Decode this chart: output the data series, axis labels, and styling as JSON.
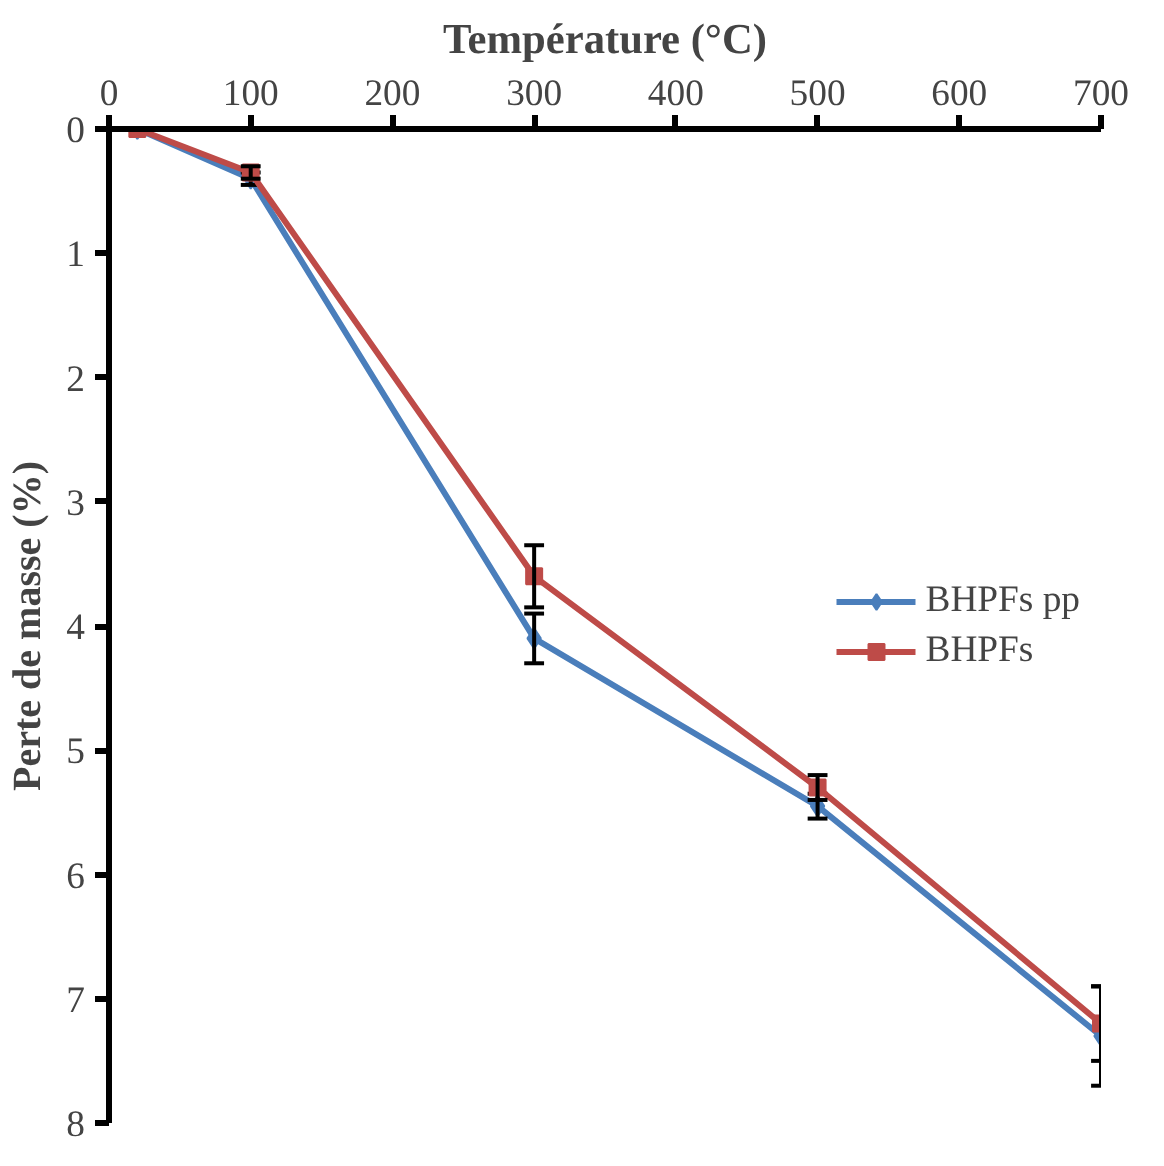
{
  "chart_data": {
    "type": "line",
    "title": "Température (°C)",
    "ylabel": "Perte de masse (%)",
    "x": [
      20,
      100,
      300,
      500,
      700
    ],
    "series": [
      {
        "name": "BHPFs pp",
        "color": "#4a7ebb",
        "marker": "diamond",
        "values": [
          0,
          0.4,
          4.1,
          5.45,
          7.3
        ],
        "errors": [
          null,
          0.05,
          0.2,
          0.1,
          0.4
        ]
      },
      {
        "name": "BHPFs",
        "color": "#be4b48",
        "marker": "square",
        "values": [
          0,
          0.35,
          3.6,
          5.3,
          7.2
        ],
        "errors": [
          null,
          0.05,
          0.25,
          0.1,
          0.3
        ]
      }
    ],
    "xlim": [
      0,
      700
    ],
    "xticks": [
      0,
      100,
      200,
      300,
      400,
      500,
      600,
      700
    ],
    "ylim": [
      8,
      0
    ],
    "yticks": [
      0,
      1,
      2,
      3,
      4,
      5,
      6,
      7,
      8
    ],
    "grid": false,
    "legend": "right",
    "line_style": "solid"
  }
}
